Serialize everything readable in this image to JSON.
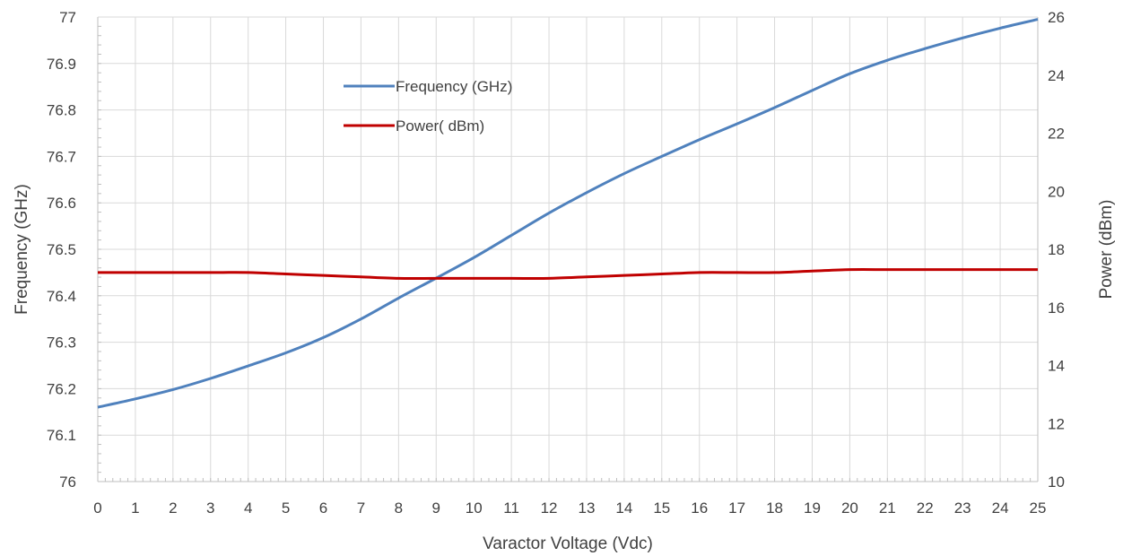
{
  "chart_data": {
    "type": "line",
    "xlabel": "Varactor Voltage (Vdc)",
    "ylabel": "Frequency (GHz)",
    "y2label": "Power (dBm)",
    "xlim": [
      0,
      25
    ],
    "ylim": [
      76,
      77
    ],
    "y2lim": [
      10,
      26
    ],
    "x_ticks": [
      "0",
      "1",
      "2",
      "3",
      "4",
      "5",
      "6",
      "7",
      "8",
      "9",
      "10",
      "11",
      "12",
      "13",
      "14",
      "15",
      "16",
      "17",
      "18",
      "19",
      "20",
      "21",
      "22",
      "23",
      "24",
      "25"
    ],
    "y_ticks": [
      "76",
      "76.1",
      "76.2",
      "76.3",
      "76.4",
      "76.5",
      "76.6",
      "76.7",
      "76.8",
      "76.9",
      "77"
    ],
    "y2_ticks": [
      "10",
      "12",
      "14",
      "16",
      "18",
      "20",
      "22",
      "24",
      "26"
    ],
    "grid": true,
    "legend_position": "top-center",
    "series": [
      {
        "name": "Frequency (GHz)",
        "axis": "left",
        "color": "#4f81bd",
        "x": [
          0,
          1,
          2,
          3,
          4,
          5,
          6,
          7,
          8,
          9,
          10,
          11,
          12,
          13,
          14,
          15,
          16,
          17,
          18,
          19,
          20,
          21,
          22,
          23,
          24,
          25
        ],
        "values": [
          76.16,
          76.178,
          76.198,
          76.222,
          76.249,
          76.277,
          76.31,
          76.35,
          76.395,
          76.438,
          76.482,
          76.53,
          76.578,
          76.622,
          76.663,
          76.7,
          76.736,
          76.77,
          76.805,
          76.842,
          76.878,
          76.907,
          76.932,
          76.955,
          76.976,
          76.995
        ]
      },
      {
        "name": "Power( dBm)",
        "axis": "right",
        "color": "#c00000",
        "x": [
          0,
          1,
          2,
          3,
          4,
          5,
          6,
          7,
          8,
          9,
          10,
          11,
          12,
          13,
          14,
          15,
          16,
          17,
          18,
          19,
          20,
          21,
          22,
          23,
          24,
          25
        ],
        "values": [
          17.2,
          17.2,
          17.2,
          17.2,
          17.2,
          17.15,
          17.1,
          17.05,
          17.0,
          17.0,
          17.0,
          17.0,
          17.0,
          17.05,
          17.1,
          17.15,
          17.2,
          17.2,
          17.2,
          17.25,
          17.3,
          17.3,
          17.3,
          17.3,
          17.3,
          17.3
        ]
      }
    ]
  }
}
